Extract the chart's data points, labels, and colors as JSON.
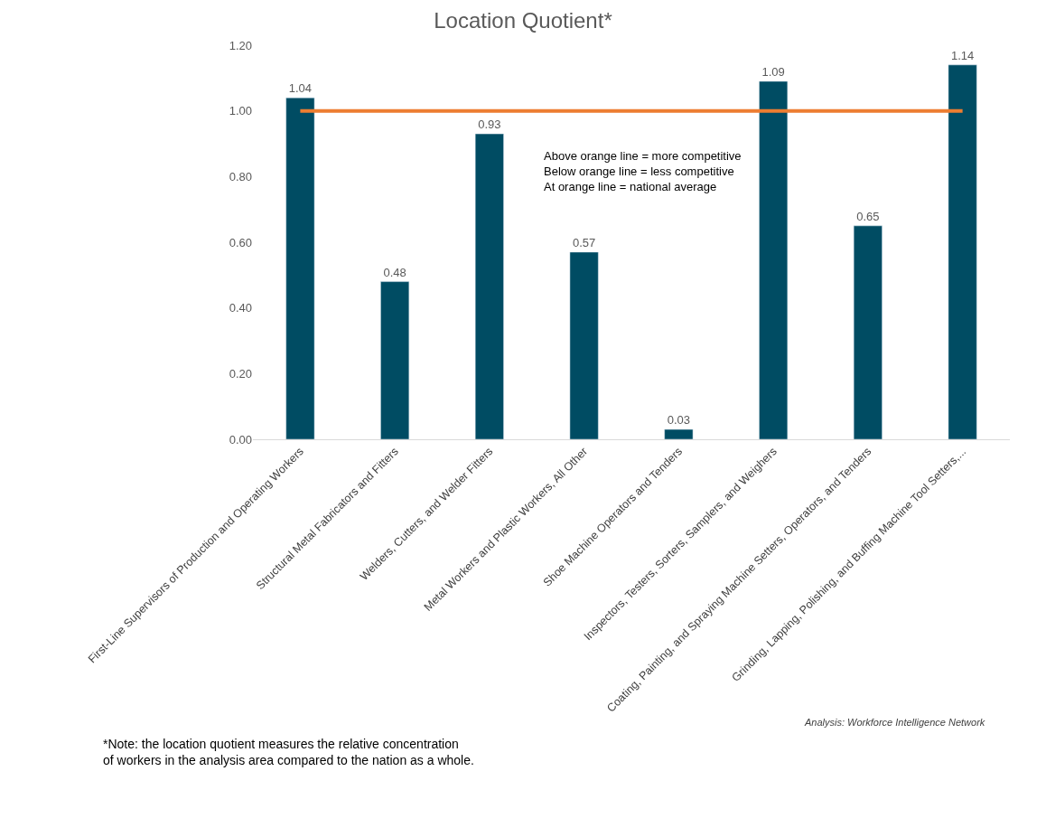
{
  "chart_data": {
    "type": "bar",
    "title": "Location Quotient*",
    "categories": [
      "First-Line Supervisors of Production and Operating Workers",
      "Structural Metal Fabricators and Fitters",
      "Welders, Cutters, and Welder Fitters",
      "Metal Workers and Plastic Workers, All Other",
      "Shoe Machine Operators and Tenders",
      "Inspectors, Testers, Sorters, Samplers, and Weighers",
      "Coating, Painting, and Spraying Machine Setters, Operators, and Tenders",
      "Grinding, Lapping, Polishing, and Buffing Machine Tool Setters,..."
    ],
    "values": [
      1.04,
      0.48,
      0.93,
      0.57,
      0.03,
      1.09,
      0.65,
      1.14
    ],
    "color": "#004c63",
    "data_labels": true,
    "ylim": [
      0,
      1.2
    ],
    "yticks": [
      {
        "value": 0,
        "label": "0.00"
      },
      {
        "value": 0.2,
        "label": "0.20"
      },
      {
        "value": 0.4,
        "label": "0.40"
      },
      {
        "value": 0.6,
        "label": "0.60"
      },
      {
        "value": 0.8,
        "label": "0.80"
      },
      {
        "value": 1.0,
        "label": "1.00"
      },
      {
        "value": 1.2,
        "label": "1.20"
      }
    ],
    "ref_lines": [
      {
        "axis": "y",
        "value": 1.0,
        "color": "#ed7d31"
      }
    ],
    "annotations": [
      "Above orange line = more competitive\nBelow orange line = less competitive\nAt orange line = national average",
      "*Note: the location quotient measures the relative concentration\nof workers in the analysis area compared to the nation as a whole.",
      "Analysis: Workforce Intelligence Network"
    ]
  }
}
